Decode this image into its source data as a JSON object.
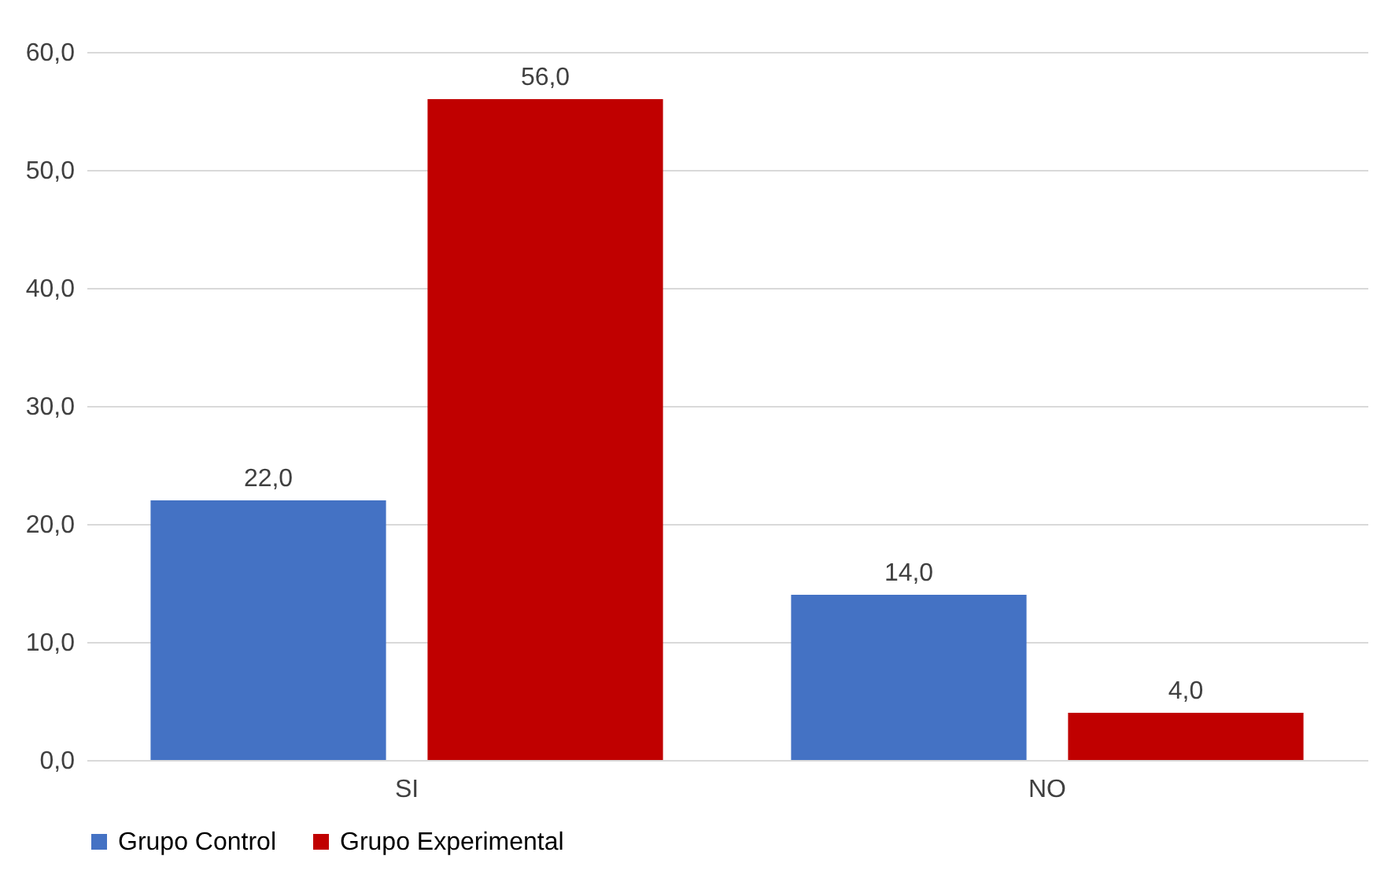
{
  "chart_data": {
    "type": "bar",
    "categories": [
      "SI",
      "NO"
    ],
    "series": [
      {
        "name": "Grupo Control",
        "color": "#4472c4",
        "values": [
          22,
          14
        ],
        "value_labels": [
          "22,0",
          "14,0"
        ]
      },
      {
        "name": "Grupo Experimental",
        "color": "#c00000",
        "values": [
          56,
          4
        ],
        "value_labels": [
          "56,0",
          "4,0"
        ]
      }
    ],
    "ylim": [
      0,
      60
    ],
    "yticks": [
      {
        "value": 0,
        "label": "0,0"
      },
      {
        "value": 10,
        "label": "10,0"
      },
      {
        "value": 20,
        "label": "20,0"
      },
      {
        "value": 30,
        "label": "30,0"
      },
      {
        "value": 40,
        "label": "40,0"
      },
      {
        "value": 50,
        "label": "50,0"
      },
      {
        "value": 60,
        "label": "60,0"
      }
    ],
    "grid": "y",
    "legend": "bottom"
  }
}
